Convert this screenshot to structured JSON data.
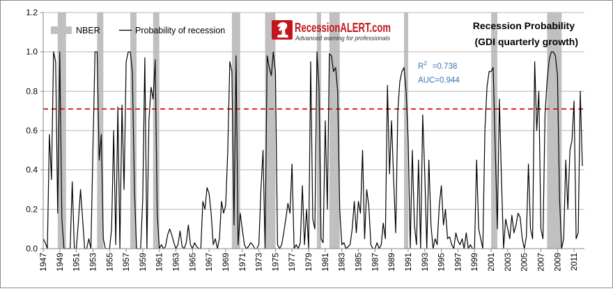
{
  "chart_data": {
    "type": "line",
    "title": "Recession Probability",
    "subtitle": "(GDI quarterly growth)",
    "xlabel": "",
    "ylabel": "",
    "xlim": [
      1947,
      2012.25
    ],
    "ylim": [
      0,
      1.2
    ],
    "yticks": [
      "0.0",
      "0.2",
      "0.4",
      "0.6",
      "0.8",
      "1.0",
      "1.2"
    ],
    "xticks": [
      "1947",
      "1949",
      "1951",
      "1953",
      "1955",
      "1957",
      "1959",
      "1961",
      "1963",
      "1965",
      "1967",
      "1969",
      "1971",
      "1973",
      "1975",
      "1977",
      "1979",
      "1981",
      "1983",
      "1985",
      "1987",
      "1989",
      "1991",
      "1993",
      "1995",
      "1997",
      "1999",
      "2001",
      "2003",
      "2005",
      "2007",
      "2009",
      "2011"
    ],
    "grid": true,
    "legend": {
      "placement": "top-left",
      "nber_label": "NBER",
      "line_label": "Probability of recession"
    },
    "threshold": {
      "value": 0.71,
      "color": "#e02020",
      "style": "dashed"
    },
    "stats": {
      "r2_label": "R",
      "r2_sup": "2",
      "r2_value": "=0.738",
      "auc": "AUC=0.944"
    },
    "brand": {
      "name_prefix": "Recession",
      "name_accent": "ALERT",
      "name_suffix": ".com",
      "tagline": "Advanced warning for professionals"
    },
    "colors": {
      "line": "#000000",
      "nber": "#c0c0c0",
      "grid": "#b8b8b8",
      "threshold": "#e02020",
      "stats": "#2e75b6",
      "brand_red": "#c0161c"
    },
    "nber_recessions": [
      [
        1948.75,
        1949.75
      ],
      [
        1953.5,
        1954.25
      ],
      [
        1957.5,
        1958.25
      ],
      [
        1960.25,
        1961.0
      ],
      [
        1969.75,
        1970.75
      ],
      [
        1973.75,
        1975.0
      ],
      [
        1980.0,
        1980.5
      ],
      [
        1981.5,
        1982.75
      ],
      [
        1990.5,
        1991.0
      ],
      [
        2001.0,
        2001.75
      ],
      [
        2007.75,
        2009.5
      ]
    ],
    "series": [
      {
        "name": "Probability of recession",
        "points": [
          [
            1947.0,
            0.05
          ],
          [
            1947.25,
            0.03
          ],
          [
            1947.5,
            0.0
          ],
          [
            1947.75,
            0.58
          ],
          [
            1948.0,
            0.35
          ],
          [
            1948.25,
            1.0
          ],
          [
            1948.5,
            0.95
          ],
          [
            1948.75,
            0.18
          ],
          [
            1949.0,
            1.0
          ],
          [
            1949.25,
            0.15
          ],
          [
            1949.5,
            0.0
          ],
          [
            1949.75,
            0.0
          ],
          [
            1950.0,
            0.0
          ],
          [
            1950.25,
            0.0
          ],
          [
            1950.5,
            0.34
          ],
          [
            1950.75,
            0.0
          ],
          [
            1951.0,
            0.0
          ],
          [
            1951.25,
            0.14
          ],
          [
            1951.5,
            0.3
          ],
          [
            1951.75,
            0.15
          ],
          [
            1952.0,
            0.0
          ],
          [
            1952.25,
            0.0
          ],
          [
            1952.5,
            0.05
          ],
          [
            1952.75,
            0.0
          ],
          [
            1953.0,
            0.5
          ],
          [
            1953.25,
            1.0
          ],
          [
            1953.5,
            1.0
          ],
          [
            1953.75,
            0.45
          ],
          [
            1954.0,
            0.58
          ],
          [
            1954.25,
            0.05
          ],
          [
            1954.5,
            0.0
          ],
          [
            1954.75,
            0.0
          ],
          [
            1955.0,
            0.0
          ],
          [
            1955.25,
            0.1
          ],
          [
            1955.5,
            0.6
          ],
          [
            1955.75,
            0.02
          ],
          [
            1956.0,
            0.72
          ],
          [
            1956.25,
            0.0
          ],
          [
            1956.5,
            0.73
          ],
          [
            1956.75,
            0.3
          ],
          [
            1957.0,
            0.95
          ],
          [
            1957.25,
            1.0
          ],
          [
            1957.5,
            1.0
          ],
          [
            1957.75,
            0.9
          ],
          [
            1958.0,
            0.3
          ],
          [
            1958.25,
            0.0
          ],
          [
            1958.5,
            0.0
          ],
          [
            1958.75,
            0.0
          ],
          [
            1959.0,
            0.25
          ],
          [
            1959.25,
            0.97
          ],
          [
            1959.5,
            0.0
          ],
          [
            1959.75,
            0.65
          ],
          [
            1960.0,
            0.82
          ],
          [
            1960.25,
            0.76
          ],
          [
            1960.5,
            0.96
          ],
          [
            1960.75,
            0.18
          ],
          [
            1961.0,
            0.0
          ],
          [
            1961.25,
            0.02
          ],
          [
            1961.5,
            0.0
          ],
          [
            1961.75,
            0.01
          ],
          [
            1962.0,
            0.07
          ],
          [
            1962.25,
            0.1
          ],
          [
            1962.5,
            0.07
          ],
          [
            1962.75,
            0.03
          ],
          [
            1963.0,
            0.0
          ],
          [
            1963.25,
            0.02
          ],
          [
            1963.5,
            0.09
          ],
          [
            1963.75,
            0.01
          ],
          [
            1964.0,
            0.0
          ],
          [
            1964.25,
            0.03
          ],
          [
            1964.5,
            0.12
          ],
          [
            1964.75,
            0.02
          ],
          [
            1965.0,
            0.0
          ],
          [
            1965.25,
            0.03
          ],
          [
            1965.5,
            0.01
          ],
          [
            1965.75,
            0.0
          ],
          [
            1966.0,
            0.0
          ],
          [
            1966.25,
            0.24
          ],
          [
            1966.5,
            0.2
          ],
          [
            1966.75,
            0.31
          ],
          [
            1967.0,
            0.28
          ],
          [
            1967.25,
            0.18
          ],
          [
            1967.5,
            0.02
          ],
          [
            1967.75,
            0.05
          ],
          [
            1968.0,
            0.0
          ],
          [
            1968.25,
            0.05
          ],
          [
            1968.5,
            0.24
          ],
          [
            1968.75,
            0.18
          ],
          [
            1969.0,
            0.22
          ],
          [
            1969.25,
            0.5
          ],
          [
            1969.5,
            0.95
          ],
          [
            1969.75,
            0.9
          ],
          [
            1970.0,
            0.12
          ],
          [
            1970.25,
            0.98
          ],
          [
            1970.5,
            0.02
          ],
          [
            1970.75,
            0.18
          ],
          [
            1971.0,
            0.1
          ],
          [
            1971.25,
            0.02
          ],
          [
            1971.5,
            0.0
          ],
          [
            1971.75,
            0.01
          ],
          [
            1972.0,
            0.03
          ],
          [
            1972.25,
            0.02
          ],
          [
            1972.5,
            0.0
          ],
          [
            1972.75,
            0.0
          ],
          [
            1973.0,
            0.02
          ],
          [
            1973.25,
            0.3
          ],
          [
            1973.5,
            0.5
          ],
          [
            1973.75,
            0.0
          ],
          [
            1974.0,
            0.98
          ],
          [
            1974.25,
            0.92
          ],
          [
            1974.5,
            0.88
          ],
          [
            1974.75,
            1.0
          ],
          [
            1975.0,
            0.9
          ],
          [
            1975.25,
            0.02
          ],
          [
            1975.5,
            0.0
          ],
          [
            1975.75,
            0.02
          ],
          [
            1976.0,
            0.08
          ],
          [
            1976.25,
            0.15
          ],
          [
            1976.5,
            0.23
          ],
          [
            1976.75,
            0.18
          ],
          [
            1977.0,
            0.43
          ],
          [
            1977.25,
            0.0
          ],
          [
            1977.5,
            0.02
          ],
          [
            1977.75,
            0.0
          ],
          [
            1978.0,
            0.03
          ],
          [
            1978.25,
            0.32
          ],
          [
            1978.5,
            0.02
          ],
          [
            1978.75,
            0.2
          ],
          [
            1979.0,
            0.0
          ],
          [
            1979.25,
            0.95
          ],
          [
            1979.5,
            0.15
          ],
          [
            1979.75,
            0.1
          ],
          [
            1980.0,
            1.0
          ],
          [
            1980.25,
            0.82
          ],
          [
            1980.5,
            0.05
          ],
          [
            1980.75,
            0.03
          ],
          [
            1981.0,
            0.65
          ],
          [
            1981.25,
            0.2
          ],
          [
            1981.5,
            0.99
          ],
          [
            1981.75,
            0.98
          ],
          [
            1982.0,
            0.9
          ],
          [
            1982.25,
            0.92
          ],
          [
            1982.5,
            0.8
          ],
          [
            1982.75,
            0.2
          ],
          [
            1983.0,
            0.02
          ],
          [
            1983.25,
            0.03
          ],
          [
            1983.5,
            0.0
          ],
          [
            1983.75,
            0.01
          ],
          [
            1984.0,
            0.02
          ],
          [
            1984.25,
            0.1
          ],
          [
            1984.5,
            0.24
          ],
          [
            1984.75,
            0.08
          ],
          [
            1985.0,
            0.24
          ],
          [
            1985.25,
            0.18
          ],
          [
            1985.5,
            0.5
          ],
          [
            1985.75,
            0.05
          ],
          [
            1986.0,
            0.3
          ],
          [
            1986.25,
            0.22
          ],
          [
            1986.5,
            0.02
          ],
          [
            1986.75,
            0.0
          ],
          [
            1987.0,
            0.0
          ],
          [
            1987.25,
            0.03
          ],
          [
            1987.5,
            0.0
          ],
          [
            1987.75,
            0.02
          ],
          [
            1988.0,
            0.13
          ],
          [
            1988.25,
            0.05
          ],
          [
            1988.5,
            0.83
          ],
          [
            1988.75,
            0.38
          ],
          [
            1989.0,
            0.65
          ],
          [
            1989.25,
            0.35
          ],
          [
            1989.5,
            0.08
          ],
          [
            1989.75,
            0.7
          ],
          [
            1990.0,
            0.85
          ],
          [
            1990.25,
            0.9
          ],
          [
            1990.5,
            0.92
          ],
          [
            1990.75,
            0.8
          ],
          [
            1991.0,
            0.55
          ],
          [
            1991.25,
            0.0
          ],
          [
            1991.5,
            0.5
          ],
          [
            1991.75,
            0.12
          ],
          [
            1992.0,
            0.02
          ],
          [
            1992.25,
            0.45
          ],
          [
            1992.5,
            0.0
          ],
          [
            1992.75,
            0.68
          ],
          [
            1993.0,
            0.38
          ],
          [
            1993.25,
            0.0
          ],
          [
            1993.5,
            0.45
          ],
          [
            1993.75,
            0.12
          ],
          [
            1994.0,
            0.0
          ],
          [
            1994.25,
            0.05
          ],
          [
            1994.5,
            0.02
          ],
          [
            1994.75,
            0.22
          ],
          [
            1995.0,
            0.32
          ],
          [
            1995.25,
            0.12
          ],
          [
            1995.5,
            0.2
          ],
          [
            1995.75,
            0.05
          ],
          [
            1996.0,
            0.06
          ],
          [
            1996.25,
            0.02
          ],
          [
            1996.5,
            0.0
          ],
          [
            1996.75,
            0.08
          ],
          [
            1997.0,
            0.04
          ],
          [
            1997.25,
            0.02
          ],
          [
            1997.5,
            0.05
          ],
          [
            1997.75,
            0.0
          ],
          [
            1998.0,
            0.08
          ],
          [
            1998.25,
            0.0
          ],
          [
            1998.5,
            0.02
          ],
          [
            1998.75,
            0.0
          ],
          [
            1999.0,
            0.0
          ],
          [
            1999.25,
            0.45
          ],
          [
            1999.5,
            0.1
          ],
          [
            1999.75,
            0.05
          ],
          [
            2000.0,
            0.0
          ],
          [
            2000.25,
            0.6
          ],
          [
            2000.5,
            0.82
          ],
          [
            2000.75,
            0.9
          ],
          [
            2001.0,
            0.9
          ],
          [
            2001.25,
            0.92
          ],
          [
            2001.5,
            0.5
          ],
          [
            2001.75,
            0.1
          ],
          [
            2002.0,
            0.76
          ],
          [
            2002.25,
            0.35
          ],
          [
            2002.5,
            0.0
          ],
          [
            2002.75,
            0.15
          ],
          [
            2003.0,
            0.1
          ],
          [
            2003.25,
            0.05
          ],
          [
            2003.5,
            0.17
          ],
          [
            2003.75,
            0.08
          ],
          [
            2004.0,
            0.12
          ],
          [
            2004.25,
            0.18
          ],
          [
            2004.5,
            0.16
          ],
          [
            2004.75,
            0.05
          ],
          [
            2005.0,
            0.0
          ],
          [
            2005.25,
            0.06
          ],
          [
            2005.5,
            0.43
          ],
          [
            2005.75,
            0.1
          ],
          [
            2006.0,
            0.05
          ],
          [
            2006.25,
            0.95
          ],
          [
            2006.5,
            0.6
          ],
          [
            2006.75,
            0.8
          ],
          [
            2007.0,
            0.1
          ],
          [
            2007.25,
            0.05
          ],
          [
            2007.5,
            0.68
          ],
          [
            2007.75,
            0.85
          ],
          [
            2008.0,
            0.96
          ],
          [
            2008.25,
            1.0
          ],
          [
            2008.5,
            1.0
          ],
          [
            2008.75,
            0.98
          ],
          [
            2009.0,
            0.88
          ],
          [
            2009.25,
            0.25
          ],
          [
            2009.5,
            0.0
          ],
          [
            2009.75,
            0.05
          ],
          [
            2010.0,
            0.45
          ],
          [
            2010.25,
            0.2
          ],
          [
            2010.5,
            0.5
          ],
          [
            2010.75,
            0.55
          ],
          [
            2011.0,
            0.75
          ],
          [
            2011.25,
            0.05
          ],
          [
            2011.5,
            0.08
          ],
          [
            2011.75,
            0.8
          ],
          [
            2012.0,
            0.42
          ]
        ]
      }
    ]
  }
}
